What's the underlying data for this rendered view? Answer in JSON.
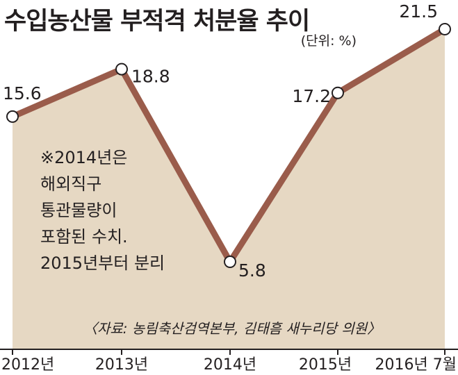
{
  "title": "수입농산물 부적격 처분율 추이",
  "unit": "(단위: %)",
  "note": [
    "※2014년은",
    "해외직구",
    "통관물량이",
    "포함된 수치.",
    "2015년부터 분리"
  ],
  "source": "〈자료: 농림축산검역본부, 김태흠 새누리당 의원〉",
  "colors": {
    "line": "#9a5c4b",
    "area": "#e6d8c3",
    "marker_fill": "#ffffff",
    "marker_stroke": "#231f20",
    "text": "#231f20",
    "axis": "#231f20"
  },
  "chart_data": {
    "type": "area",
    "categories": [
      "2012년",
      "2013년",
      "2014년",
      "2015년",
      "2016년 7월"
    ],
    "values": [
      15.6,
      18.8,
      5.8,
      17.2,
      21.5
    ],
    "value_labels": [
      "15.6",
      "18.8",
      "5.8",
      "17.2",
      "21.5"
    ],
    "title": "수입농산물 부적격 처분율 추이",
    "xlabel": "",
    "ylabel": "",
    "unit": "%",
    "grid": false,
    "legend": "none"
  }
}
